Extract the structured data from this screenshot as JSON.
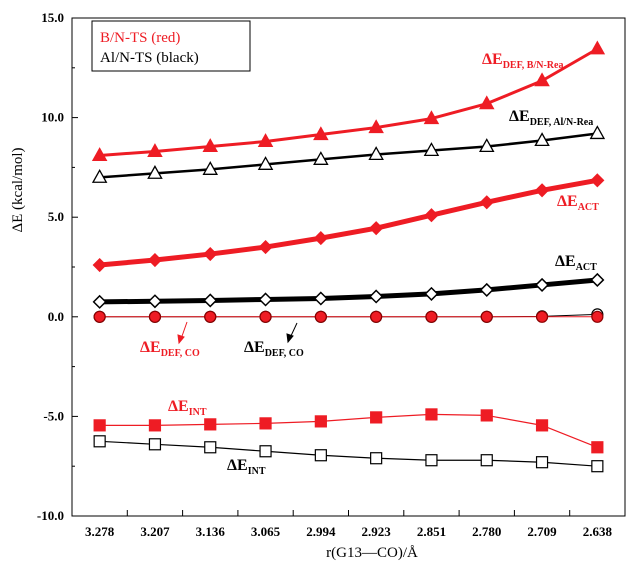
{
  "chart_data": {
    "type": "line",
    "xlabel": "r(G13—CO)/Å",
    "ylabel": "ΔE (kcal/mol)",
    "categories": [
      "3.278",
      "3.207",
      "3.136",
      "3.065",
      "2.994",
      "2.923",
      "2.851",
      "2.780",
      "2.709",
      "2.638"
    ],
    "ylim": [
      -10,
      15
    ],
    "yticks": [
      "-10.0",
      "-5.0",
      "0.0",
      "5.0",
      "10.0",
      "15.0"
    ],
    "grid": false,
    "legend": {
      "placement": "top-left",
      "entries": [
        {
          "text": "B/N-TS  (red)",
          "color": "#ee1c24"
        },
        {
          "text": "Al/N-TS (black)",
          "color": "#000000"
        }
      ]
    },
    "series": [
      {
        "id": "def-bn-rea",
        "color": "#ee1c24",
        "marker": "triangle-filled",
        "line_width": 3,
        "values": [
          8.1,
          8.3,
          8.55,
          8.8,
          9.15,
          9.5,
          9.95,
          10.7,
          11.85,
          13.45
        ]
      },
      {
        "id": "def-aln-rea",
        "color": "#000000",
        "marker": "triangle-open",
        "line_width": 2.5,
        "values": [
          7.0,
          7.2,
          7.4,
          7.65,
          7.9,
          8.15,
          8.35,
          8.55,
          8.85,
          9.2
        ]
      },
      {
        "id": "act-bn",
        "color": "#ee1c24",
        "marker": "diamond-filled",
        "line_width": 5,
        "values": [
          2.6,
          2.85,
          3.15,
          3.5,
          3.95,
          4.45,
          5.1,
          5.75,
          6.35,
          6.85
        ]
      },
      {
        "id": "act-aln",
        "color": "#000000",
        "marker": "diamond-open",
        "line_width": 5,
        "values": [
          0.75,
          0.78,
          0.82,
          0.87,
          0.92,
          1.02,
          1.15,
          1.35,
          1.6,
          1.85
        ]
      },
      {
        "id": "def-aln-co",
        "color": "#000000",
        "marker": "circle-open",
        "line_width": 1,
        "values": [
          0.0,
          0.0,
          0.0,
          0.0,
          0.0,
          0.0,
          0.0,
          0.0,
          0.02,
          0.12
        ]
      },
      {
        "id": "def-bn-co",
        "color": "#ee1c24",
        "marker": "circle-filled",
        "line_width": 1,
        "values": [
          0.0,
          0.0,
          0.0,
          0.0,
          0.0,
          0.0,
          0.0,
          0.0,
          0.0,
          0.0
        ]
      },
      {
        "id": "int-bn",
        "color": "#ee1c24",
        "marker": "square-filled",
        "line_width": 1.2,
        "values": [
          -5.45,
          -5.45,
          -5.4,
          -5.35,
          -5.25,
          -5.05,
          -4.9,
          -4.95,
          -5.45,
          -6.55
        ]
      },
      {
        "id": "int-aln",
        "color": "#000000",
        "marker": "square-open",
        "line_width": 1.2,
        "values": [
          -6.25,
          -6.4,
          -6.55,
          -6.75,
          -6.95,
          -7.1,
          -7.2,
          -7.2,
          -7.3,
          -7.5
        ]
      }
    ],
    "annotations": [
      {
        "id": "ann-def-bn-rea",
        "main": "ΔE",
        "sub": "DEF, B/N-Rea",
        "color": "#ee1c24"
      },
      {
        "id": "ann-def-aln-rea",
        "main": "ΔE",
        "sub": "DEF, Al/N-Rea",
        "color": "#000000"
      },
      {
        "id": "ann-act-bn",
        "main": "ΔE",
        "sub": "ACT",
        "color": "#ee1c24"
      },
      {
        "id": "ann-act-aln",
        "main": "ΔE",
        "sub": "ACT",
        "color": "#000000"
      },
      {
        "id": "ann-def-bn-co",
        "main": "ΔE",
        "sub": "DEF, CO",
        "color": "#ee1c24"
      },
      {
        "id": "ann-def-aln-co",
        "main": "ΔE",
        "sub": "DEF, CO",
        "color": "#000000"
      },
      {
        "id": "ann-int-bn",
        "main": "ΔE",
        "sub": "INT",
        "color": "#ee1c24"
      },
      {
        "id": "ann-int-aln",
        "main": "ΔE",
        "sub": "INT",
        "color": "#000000"
      }
    ]
  }
}
